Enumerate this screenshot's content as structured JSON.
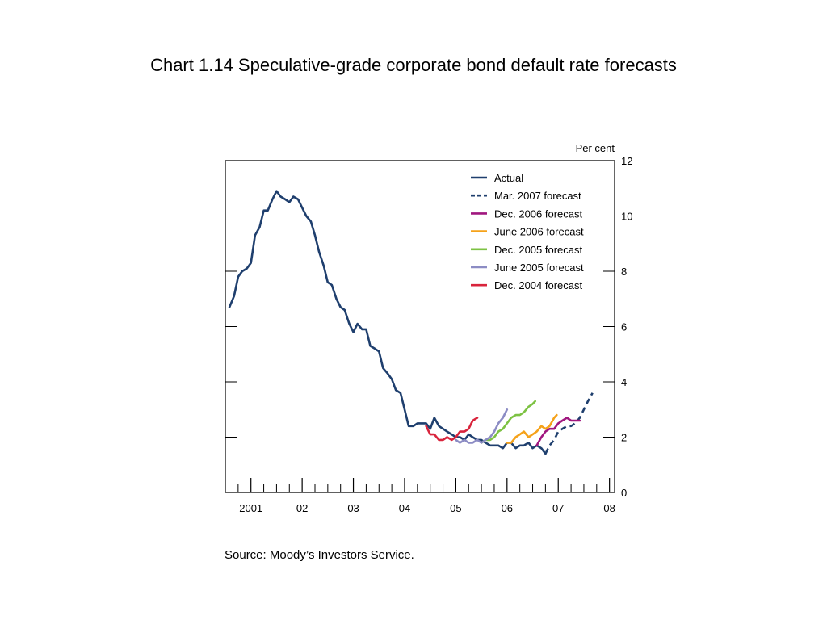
{
  "title": "Chart 1.14  Speculative-grade corporate bond default rate forecasts",
  "source": "Source:  Moody’s Investors Service.",
  "chart_data": {
    "type": "line",
    "y_unit_label": "Per cent",
    "ylim": [
      0,
      12
    ],
    "y_ticks": [
      0,
      2,
      4,
      6,
      8,
      10,
      12
    ],
    "xlim": [
      2000.5,
      2008.1
    ],
    "x_ticks": [
      {
        "value": 2001,
        "label": "2001"
      },
      {
        "value": 2002,
        "label": "02"
      },
      {
        "value": 2003,
        "label": "03"
      },
      {
        "value": 2004,
        "label": "04"
      },
      {
        "value": 2005,
        "label": "05"
      },
      {
        "value": 2006,
        "label": "06"
      },
      {
        "value": 2007,
        "label": "07"
      },
      {
        "value": 2008,
        "label": "08"
      }
    ],
    "legend_position": "top-right",
    "grid": false,
    "series": [
      {
        "name": "Actual",
        "color": "#1f3f6e",
        "dashed": false,
        "points": [
          [
            2000.58,
            6.7
          ],
          [
            2000.67,
            7.1
          ],
          [
            2000.75,
            7.8
          ],
          [
            2000.83,
            8.0
          ],
          [
            2000.92,
            8.1
          ],
          [
            2001.0,
            8.3
          ],
          [
            2001.08,
            9.3
          ],
          [
            2001.17,
            9.6
          ],
          [
            2001.25,
            10.2
          ],
          [
            2001.33,
            10.2
          ],
          [
            2001.42,
            10.6
          ],
          [
            2001.5,
            10.9
          ],
          [
            2001.58,
            10.7
          ],
          [
            2001.67,
            10.6
          ],
          [
            2001.75,
            10.5
          ],
          [
            2001.83,
            10.7
          ],
          [
            2001.92,
            10.6
          ],
          [
            2002.0,
            10.3
          ],
          [
            2002.08,
            10.0
          ],
          [
            2002.17,
            9.8
          ],
          [
            2002.25,
            9.3
          ],
          [
            2002.33,
            8.7
          ],
          [
            2002.42,
            8.2
          ],
          [
            2002.5,
            7.6
          ],
          [
            2002.58,
            7.5
          ],
          [
            2002.67,
            7.0
          ],
          [
            2002.75,
            6.7
          ],
          [
            2002.83,
            6.6
          ],
          [
            2002.92,
            6.1
          ],
          [
            2003.0,
            5.8
          ],
          [
            2003.08,
            6.1
          ],
          [
            2003.17,
            5.9
          ],
          [
            2003.25,
            5.9
          ],
          [
            2003.33,
            5.3
          ],
          [
            2003.42,
            5.2
          ],
          [
            2003.5,
            5.1
          ],
          [
            2003.58,
            4.5
          ],
          [
            2003.67,
            4.3
          ],
          [
            2003.75,
            4.1
          ],
          [
            2003.83,
            3.7
          ],
          [
            2003.92,
            3.6
          ],
          [
            2004.0,
            3.0
          ],
          [
            2004.08,
            2.4
          ],
          [
            2004.17,
            2.4
          ],
          [
            2004.25,
            2.5
          ],
          [
            2004.33,
            2.5
          ],
          [
            2004.42,
            2.5
          ],
          [
            2004.5,
            2.3
          ],
          [
            2004.58,
            2.7
          ],
          [
            2004.67,
            2.4
          ],
          [
            2004.75,
            2.3
          ],
          [
            2004.83,
            2.2
          ],
          [
            2004.92,
            2.1
          ],
          [
            2005.0,
            2.0
          ],
          [
            2005.08,
            2.0
          ],
          [
            2005.17,
            1.9
          ],
          [
            2005.25,
            2.1
          ],
          [
            2005.33,
            2.0
          ],
          [
            2005.42,
            1.9
          ],
          [
            2005.5,
            1.9
          ],
          [
            2005.58,
            1.8
          ],
          [
            2005.67,
            1.7
          ],
          [
            2005.75,
            1.7
          ],
          [
            2005.83,
            1.7
          ],
          [
            2005.92,
            1.6
          ],
          [
            2006.0,
            1.8
          ],
          [
            2006.08,
            1.8
          ],
          [
            2006.17,
            1.6
          ],
          [
            2006.25,
            1.7
          ],
          [
            2006.33,
            1.7
          ],
          [
            2006.42,
            1.8
          ],
          [
            2006.5,
            1.6
          ],
          [
            2006.58,
            1.7
          ],
          [
            2006.67,
            1.6
          ],
          [
            2006.75,
            1.4
          ]
        ]
      },
      {
        "name": "Mar. 2007 forecast",
        "color": "#1f3f6e",
        "dashed": true,
        "points": [
          [
            2006.75,
            1.4
          ],
          [
            2006.83,
            1.7
          ],
          [
            2006.92,
            1.9
          ],
          [
            2007.0,
            2.2
          ],
          [
            2007.08,
            2.3
          ],
          [
            2007.17,
            2.4
          ],
          [
            2007.25,
            2.4
          ],
          [
            2007.33,
            2.5
          ],
          [
            2007.42,
            2.7
          ],
          [
            2007.5,
            3.0
          ],
          [
            2007.58,
            3.3
          ],
          [
            2007.67,
            3.6
          ]
        ]
      },
      {
        "name": "Dec. 2006 forecast",
        "color": "#a0177f",
        "dashed": false,
        "points": [
          [
            2006.58,
            1.7
          ],
          [
            2006.67,
            2.0
          ],
          [
            2006.75,
            2.2
          ],
          [
            2006.83,
            2.3
          ],
          [
            2006.92,
            2.3
          ],
          [
            2007.0,
            2.5
          ],
          [
            2007.08,
            2.6
          ],
          [
            2007.17,
            2.7
          ],
          [
            2007.25,
            2.6
          ],
          [
            2007.33,
            2.6
          ],
          [
            2007.42,
            2.6
          ]
        ]
      },
      {
        "name": "June 2006 forecast",
        "color": "#f5a21a",
        "dashed": false,
        "points": [
          [
            2006.0,
            1.8
          ],
          [
            2006.08,
            1.8
          ],
          [
            2006.17,
            2.0
          ],
          [
            2006.25,
            2.1
          ],
          [
            2006.33,
            2.2
          ],
          [
            2006.42,
            2.0
          ],
          [
            2006.5,
            2.1
          ],
          [
            2006.58,
            2.2
          ],
          [
            2006.67,
            2.4
          ],
          [
            2006.75,
            2.3
          ],
          [
            2006.83,
            2.4
          ],
          [
            2006.92,
            2.7
          ],
          [
            2006.97,
            2.8
          ]
        ]
      },
      {
        "name": "Dec. 2005 forecast",
        "color": "#7dc243",
        "dashed": false,
        "points": [
          [
            2005.5,
            1.8
          ],
          [
            2005.58,
            1.9
          ],
          [
            2005.67,
            1.9
          ],
          [
            2005.75,
            2.0
          ],
          [
            2005.83,
            2.2
          ],
          [
            2005.92,
            2.3
          ],
          [
            2006.0,
            2.5
          ],
          [
            2006.08,
            2.7
          ],
          [
            2006.17,
            2.8
          ],
          [
            2006.25,
            2.8
          ],
          [
            2006.33,
            2.9
          ],
          [
            2006.42,
            3.1
          ],
          [
            2006.5,
            3.2
          ],
          [
            2006.55,
            3.3
          ]
        ]
      },
      {
        "name": "June 2005 forecast",
        "color": "#8c8cc4",
        "dashed": false,
        "points": [
          [
            2005.0,
            1.9
          ],
          [
            2005.08,
            1.8
          ],
          [
            2005.17,
            1.9
          ],
          [
            2005.25,
            1.8
          ],
          [
            2005.33,
            1.8
          ],
          [
            2005.42,
            1.9
          ],
          [
            2005.5,
            1.8
          ],
          [
            2005.58,
            1.9
          ],
          [
            2005.67,
            2.0
          ],
          [
            2005.75,
            2.2
          ],
          [
            2005.83,
            2.5
          ],
          [
            2005.92,
            2.7
          ],
          [
            2006.0,
            3.0
          ]
        ]
      },
      {
        "name": "Dec. 2004 forecast",
        "color": "#d9243c",
        "dashed": false,
        "points": [
          [
            2004.42,
            2.4
          ],
          [
            2004.5,
            2.1
          ],
          [
            2004.58,
            2.1
          ],
          [
            2004.67,
            1.9
          ],
          [
            2004.75,
            1.9
          ],
          [
            2004.83,
            2.0
          ],
          [
            2004.92,
            1.9
          ],
          [
            2005.0,
            2.0
          ],
          [
            2005.08,
            2.2
          ],
          [
            2005.17,
            2.2
          ],
          [
            2005.25,
            2.3
          ],
          [
            2005.33,
            2.6
          ],
          [
            2005.42,
            2.7
          ]
        ]
      }
    ]
  }
}
